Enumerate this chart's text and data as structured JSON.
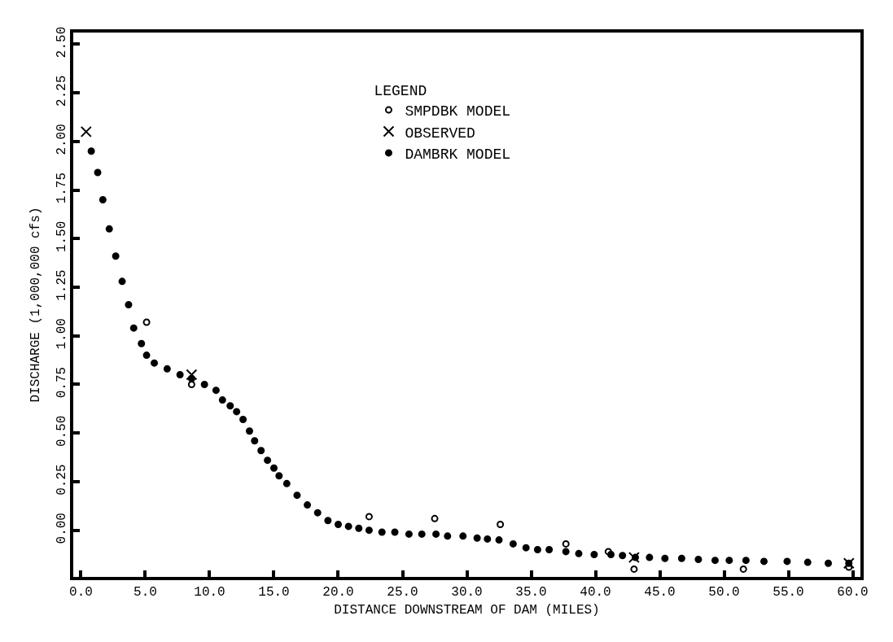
{
  "chart_data": {
    "type": "scatter",
    "xlabel": "DISTANCE DOWNSTREAM OF DAM (MILES)",
    "ylabel": "DISCHARGE (1,000,000 cfs)",
    "legend_title": "LEGEND",
    "legend": "top right",
    "xlim": [
      -0.6,
      60.6
    ],
    "ylim": [
      -0.24,
      2.56
    ],
    "xticks": [
      {
        "value": 0,
        "label": "0.0"
      },
      {
        "value": 5,
        "label": "5.0"
      },
      {
        "value": 10,
        "label": "10.0"
      },
      {
        "value": 15,
        "label": "15.0"
      },
      {
        "value": 20,
        "label": "20.0"
      },
      {
        "value": 25,
        "label": "25.0"
      },
      {
        "value": 30,
        "label": "30.0"
      },
      {
        "value": 35,
        "label": "35.0"
      },
      {
        "value": 40,
        "label": "40.0"
      },
      {
        "value": 45,
        "label": "45.0"
      },
      {
        "value": 50,
        "label": "50.0"
      },
      {
        "value": 55,
        "label": "55.0"
      },
      {
        "value": 60,
        "label": "60.0"
      }
    ],
    "yticks": [
      {
        "value": 0,
        "label": "0.00"
      },
      0.25,
      {
        "value": 0.5,
        "label": "0.50"
      },
      0.75,
      {
        "value": 1,
        "label": "1.00"
      },
      1.25,
      {
        "value": 1.5,
        "label": "1.50"
      },
      1.75,
      {
        "value": 2,
        "label": "2.00"
      },
      2.25,
      {
        "value": 2.5,
        "label": "2.50"
      }
    ],
    "series": [
      {
        "name": "SMPDBK MODEL",
        "color": "#000000",
        "marker": "circle-open",
        "x": [
          5.1,
          8.6,
          22.4,
          27.5,
          32.6,
          37.7,
          41.0,
          43.0,
          51.5,
          59.7
        ],
        "values": [
          1.07,
          0.75,
          0.07,
          0.06,
          0.03,
          -0.07,
          -0.11,
          -0.2,
          -0.2,
          -0.19
        ]
      },
      {
        "name": "OBSERVED",
        "color": "#000000",
        "marker": "x",
        "x": [
          0.4,
          8.6,
          43.0,
          59.7
        ],
        "values": [
          2.05,
          0.8,
          -0.14,
          -0.17
        ]
      },
      {
        "name": "DAMBRK MODEL",
        "color": "#000000",
        "marker": "circle",
        "x": [
          0.8,
          1.3,
          1.7,
          2.2,
          2.7,
          3.2,
          3.7,
          4.1,
          4.7,
          5.1,
          5.7,
          6.7,
          7.7,
          8.6,
          9.6,
          10.5,
          11.0,
          11.6,
          12.1,
          12.6,
          13.1,
          13.5,
          14.0,
          14.5,
          15.0,
          15.4,
          16.0,
          16.8,
          17.6,
          18.4,
          19.2,
          20.0,
          20.8,
          21.6,
          22.4,
          23.4,
          24.4,
          25.5,
          26.5,
          27.6,
          28.5,
          29.7,
          30.8,
          31.6,
          32.5,
          33.6,
          34.6,
          35.5,
          36.4,
          37.7,
          38.7,
          39.9,
          41.2,
          42.1,
          43.1,
          44.2,
          45.4,
          46.7,
          48.0,
          49.3,
          50.4,
          51.7,
          53.1,
          54.9,
          56.5,
          58.1,
          59.7
        ],
        "values": [
          1.95,
          1.84,
          1.7,
          1.55,
          1.41,
          1.28,
          1.16,
          1.04,
          0.96,
          0.9,
          0.86,
          0.83,
          0.8,
          0.78,
          0.75,
          0.72,
          0.67,
          0.64,
          0.61,
          0.57,
          0.51,
          0.46,
          0.41,
          0.36,
          0.32,
          0.28,
          0.24,
          0.18,
          0.13,
          0.09,
          0.05,
          0.03,
          0.02,
          0.01,
          0.0,
          -0.01,
          -0.01,
          -0.02,
          -0.02,
          -0.02,
          -0.03,
          -0.03,
          -0.04,
          -0.045,
          -0.05,
          -0.07,
          -0.09,
          -0.1,
          -0.1,
          -0.11,
          -0.12,
          -0.125,
          -0.125,
          -0.13,
          -0.14,
          -0.14,
          -0.145,
          -0.145,
          -0.15,
          -0.155,
          -0.155,
          -0.155,
          -0.16,
          -0.16,
          -0.165,
          -0.17,
          -0.17
        ]
      }
    ]
  }
}
